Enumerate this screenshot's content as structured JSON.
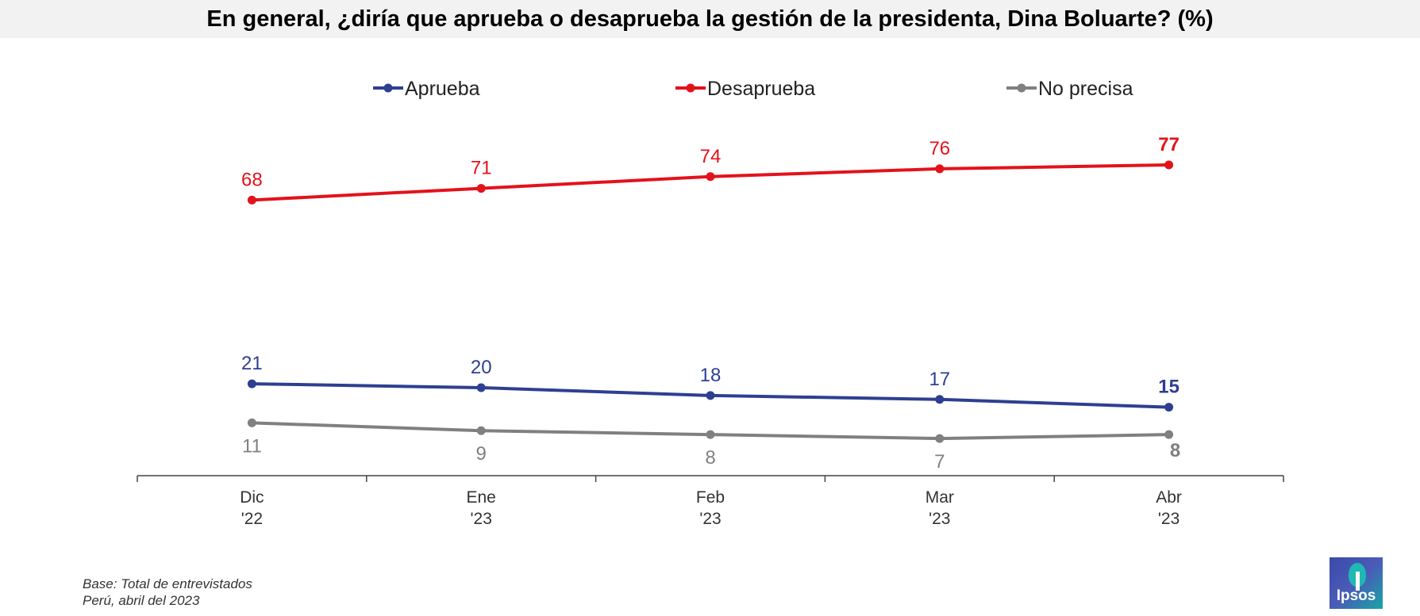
{
  "title": "En general, ¿diría que aprueba o desaprueba la gestión de la presidenta, Dina Boluarte? (%)",
  "chart_data": {
    "type": "line",
    "categories": [
      [
        "Dic",
        "'22"
      ],
      [
        "Ene",
        "'23"
      ],
      [
        "Feb",
        "'23"
      ],
      [
        "Mar",
        "'23"
      ],
      [
        "Abr",
        "'23"
      ]
    ],
    "series": [
      {
        "name": "Aprueba",
        "values": [
          21,
          20,
          18,
          17,
          15
        ],
        "color": "#2e3f92",
        "label_position": "above"
      },
      {
        "name": "Desaprueba",
        "values": [
          68,
          71,
          74,
          76,
          77
        ],
        "color": "#e3121b",
        "label_position": "above"
      },
      {
        "name": "No precisa",
        "values": [
          11,
          9,
          8,
          7,
          8
        ],
        "color": "#808080",
        "label_position": "below"
      }
    ],
    "ylim": [
      0,
      80
    ],
    "legend": "top",
    "grid": false,
    "last_point_label_emphasis": true
  },
  "footer": {
    "line1": "Base: Total de entrevistados",
    "line2": "Perú, abril del 2023"
  },
  "logo": {
    "text": "Ipsos"
  }
}
